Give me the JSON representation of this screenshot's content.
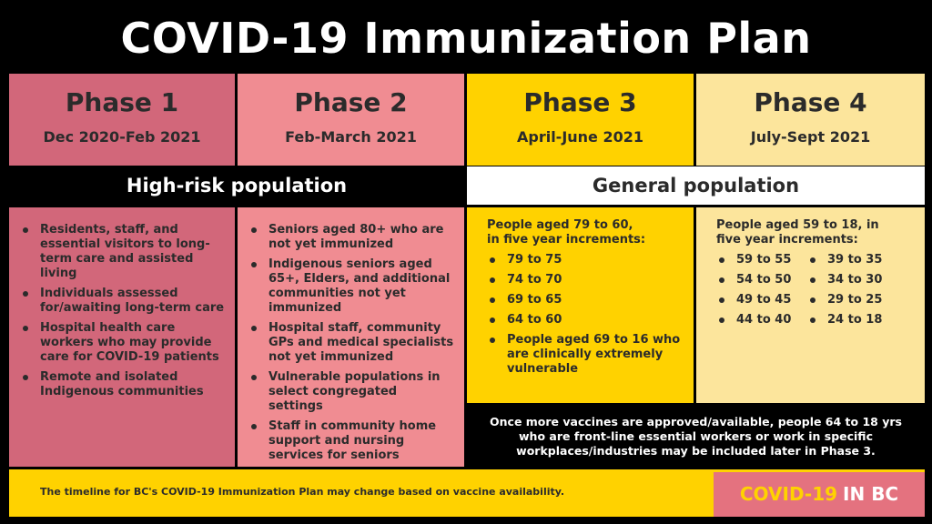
{
  "title": "COVID-19 Immunization Plan",
  "colors": {
    "phase1": "#d2677a",
    "phase2": "#f08c92",
    "phase3": "#ffd200",
    "phase4": "#fce59c",
    "footer": "#ffd200",
    "brand_bg": "#e4727f"
  },
  "phases": [
    {
      "name": "Phase 1",
      "dates": "Dec 2020-Feb 2021"
    },
    {
      "name": "Phase 2",
      "dates": "Feb-March 2021"
    },
    {
      "name": "Phase 3",
      "dates": "April-June 2021"
    },
    {
      "name": "Phase 4",
      "dates": "July-Sept 2021"
    }
  ],
  "bands": {
    "high_risk": "High-risk population",
    "general": "General population"
  },
  "phase1_items": [
    "Residents, staff, and essential visitors to long-term care and assisted living",
    "Individuals assessed for/awaiting long-term care",
    "Hospital health care workers who may provide care for COVID-19 patients",
    "Remote and isolated Indigenous communities"
  ],
  "phase2_items": [
    "Seniors aged 80+ who are not yet immunized",
    "Indigenous seniors aged 65+, Elders, and additional communities not yet immunized",
    "Hospital staff, community GPs and medical specialists not yet immunized",
    "Vulnerable populations in select congregated settings",
    "Staff in community home support and nursing services for seniors"
  ],
  "phase3": {
    "intro_line1": "People aged 79 to 60,",
    "intro_line2": "in five year increments:",
    "items": [
      "79 to 75",
      "74 to 70",
      "69 to 65",
      "64 to 60",
      "People aged 69 to 16 who are clinically extremely vulnerable"
    ]
  },
  "phase4": {
    "intro_line1": "People aged 59 to 18, in",
    "intro_line2": "five year increments:",
    "left": [
      "59 to 55",
      "54 to 50",
      "49 to 45",
      "44 to 40"
    ],
    "right": [
      "39 to 35",
      "34 to 30",
      "29 to 25",
      "24 to 18"
    ]
  },
  "note": "Once more vaccines are approved/available, people 64 to 18 yrs who are front-line essential workers or work in specific workplaces/industries may be included later in Phase 3.",
  "footer": {
    "text": "The timeline for BC's COVID-19 Immunization Plan may change based on vaccine availability.",
    "brand_part1": "COVID-19",
    "brand_part2": "IN BC"
  }
}
